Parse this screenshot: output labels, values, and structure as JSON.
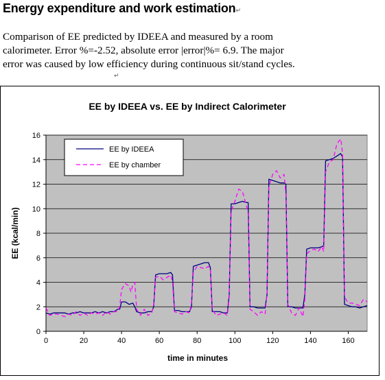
{
  "heading": "Energy expenditure and work estimation",
  "paragraph_mark": "↵",
  "paragraph_lines": [
    "Comparison of EE predicted by IDEEA and measured by a room",
    "calorimeter. Error %=-2.52, absolute error |error|%= 6.9. The major",
    "error was caused by low efficiency during continuous sit/stand cycles."
  ],
  "chart_data": {
    "type": "line",
    "title": "EE by IDEEA vs. EE by Indirect Calorimeter",
    "xlabel": "time in minutes",
    "ylabel": "EE (kcal/min)",
    "xlim": [
      0,
      170
    ],
    "ylim": [
      0,
      16
    ],
    "xticks": [
      0,
      20,
      40,
      60,
      80,
      100,
      120,
      140,
      160
    ],
    "yticks": [
      0,
      2,
      4,
      6,
      8,
      10,
      12,
      14,
      16
    ],
    "grid": "horizontal",
    "legend_position": "top-left",
    "series": [
      {
        "name": "EE by IDEEA",
        "color": "#000080",
        "style": "solid",
        "x": [
          0,
          2,
          4,
          6,
          8,
          10,
          12,
          14,
          16,
          18,
          20,
          22,
          24,
          26,
          28,
          30,
          32,
          34,
          36,
          38,
          39,
          40,
          42,
          44,
          46,
          47,
          48,
          50,
          52,
          54,
          56,
          57,
          58,
          60,
          62,
          64,
          66,
          67,
          68,
          70,
          72,
          74,
          76,
          77,
          78,
          80,
          82,
          84,
          86,
          87,
          88,
          90,
          92,
          94,
          96,
          97,
          98,
          100,
          102,
          104,
          106,
          107,
          108,
          110,
          112,
          114,
          116,
          117,
          118,
          120,
          122,
          124,
          126,
          127,
          128,
          130,
          132,
          134,
          136,
          137,
          138,
          140,
          142,
          144,
          146,
          147,
          148,
          150,
          152,
          154,
          156,
          157,
          158,
          160,
          162,
          164,
          166,
          168,
          170
        ],
        "y": [
          1.5,
          1.4,
          1.5,
          1.5,
          1.5,
          1.5,
          1.4,
          1.5,
          1.5,
          1.6,
          1.5,
          1.5,
          1.5,
          1.6,
          1.5,
          1.6,
          1.5,
          1.6,
          1.6,
          1.8,
          1.8,
          2.4,
          2.4,
          2.2,
          2.3,
          2.0,
          1.6,
          1.5,
          1.5,
          1.6,
          1.6,
          2.0,
          4.6,
          4.7,
          4.7,
          4.7,
          4.8,
          4.6,
          1.7,
          1.7,
          1.6,
          1.6,
          1.6,
          2.0,
          5.3,
          5.4,
          5.5,
          5.6,
          5.6,
          5.2,
          1.6,
          1.6,
          1.6,
          1.5,
          1.5,
          3.0,
          10.4,
          10.4,
          10.5,
          10.6,
          10.5,
          10.5,
          2.0,
          2.0,
          1.9,
          1.9,
          1.9,
          3.0,
          12.4,
          12.3,
          12.2,
          12.1,
          12.1,
          12.0,
          2.0,
          2.0,
          1.9,
          1.9,
          1.9,
          3.0,
          6.7,
          6.8,
          6.8,
          6.8,
          6.9,
          7.0,
          13.9,
          14.0,
          14.1,
          14.3,
          14.5,
          14.2,
          2.2,
          2.1,
          2.0,
          2.0,
          1.9,
          2.0,
          2.1
        ]
      },
      {
        "name": "EE by chamber",
        "color": "#ff00ff",
        "style": "dashed",
        "x": [
          0,
          2,
          4,
          6,
          8,
          10,
          12,
          14,
          16,
          18,
          20,
          22,
          24,
          26,
          28,
          30,
          32,
          34,
          36,
          38,
          39,
          40,
          42,
          44,
          45,
          46,
          47,
          48,
          50,
          52,
          54,
          56,
          57,
          58,
          60,
          62,
          64,
          66,
          67,
          68,
          70,
          72,
          74,
          76,
          77,
          78,
          80,
          82,
          84,
          86,
          87,
          88,
          90,
          92,
          94,
          96,
          97,
          98,
          100,
          102,
          104,
          106,
          107,
          108,
          110,
          112,
          114,
          116,
          117,
          118,
          120,
          122,
          124,
          126,
          127,
          128,
          130,
          132,
          134,
          136,
          137,
          138,
          140,
          142,
          144,
          146,
          147,
          148,
          150,
          152,
          154,
          156,
          157,
          158,
          160,
          162,
          164,
          166,
          168,
          170
        ],
        "y": [
          1.9,
          1.3,
          1.4,
          1.4,
          1.3,
          1.2,
          1.4,
          1.3,
          1.6,
          1.3,
          1.5,
          1.3,
          1.5,
          1.4,
          1.5,
          1.3,
          1.6,
          1.4,
          1.6,
          1.6,
          2.0,
          3.4,
          3.9,
          3.7,
          3.2,
          3.8,
          4.0,
          1.8,
          1.3,
          1.8,
          1.3,
          1.5,
          2.2,
          4.4,
          4.5,
          4.2,
          4.4,
          4.6,
          4.0,
          1.6,
          1.5,
          1.4,
          1.6,
          1.5,
          2.3,
          4.8,
          5.3,
          5.2,
          5.1,
          5.3,
          5.0,
          1.8,
          1.3,
          1.4,
          1.5,
          1.3,
          2.8,
          9.8,
          10.6,
          11.6,
          11.4,
          10.3,
          9.6,
          1.8,
          1.6,
          1.3,
          1.6,
          1.4,
          3.2,
          11.8,
          12.8,
          13.1,
          12.5,
          12.8,
          11.2,
          2.2,
          1.5,
          1.3,
          1.9,
          1.2,
          2.6,
          6.3,
          6.6,
          6.7,
          6.5,
          6.9,
          6.5,
          13.0,
          13.8,
          14.0,
          15.3,
          15.7,
          14.5,
          2.8,
          2.3,
          2.3,
          2.2,
          2.1,
          2.6,
          2.4
        ]
      }
    ]
  }
}
